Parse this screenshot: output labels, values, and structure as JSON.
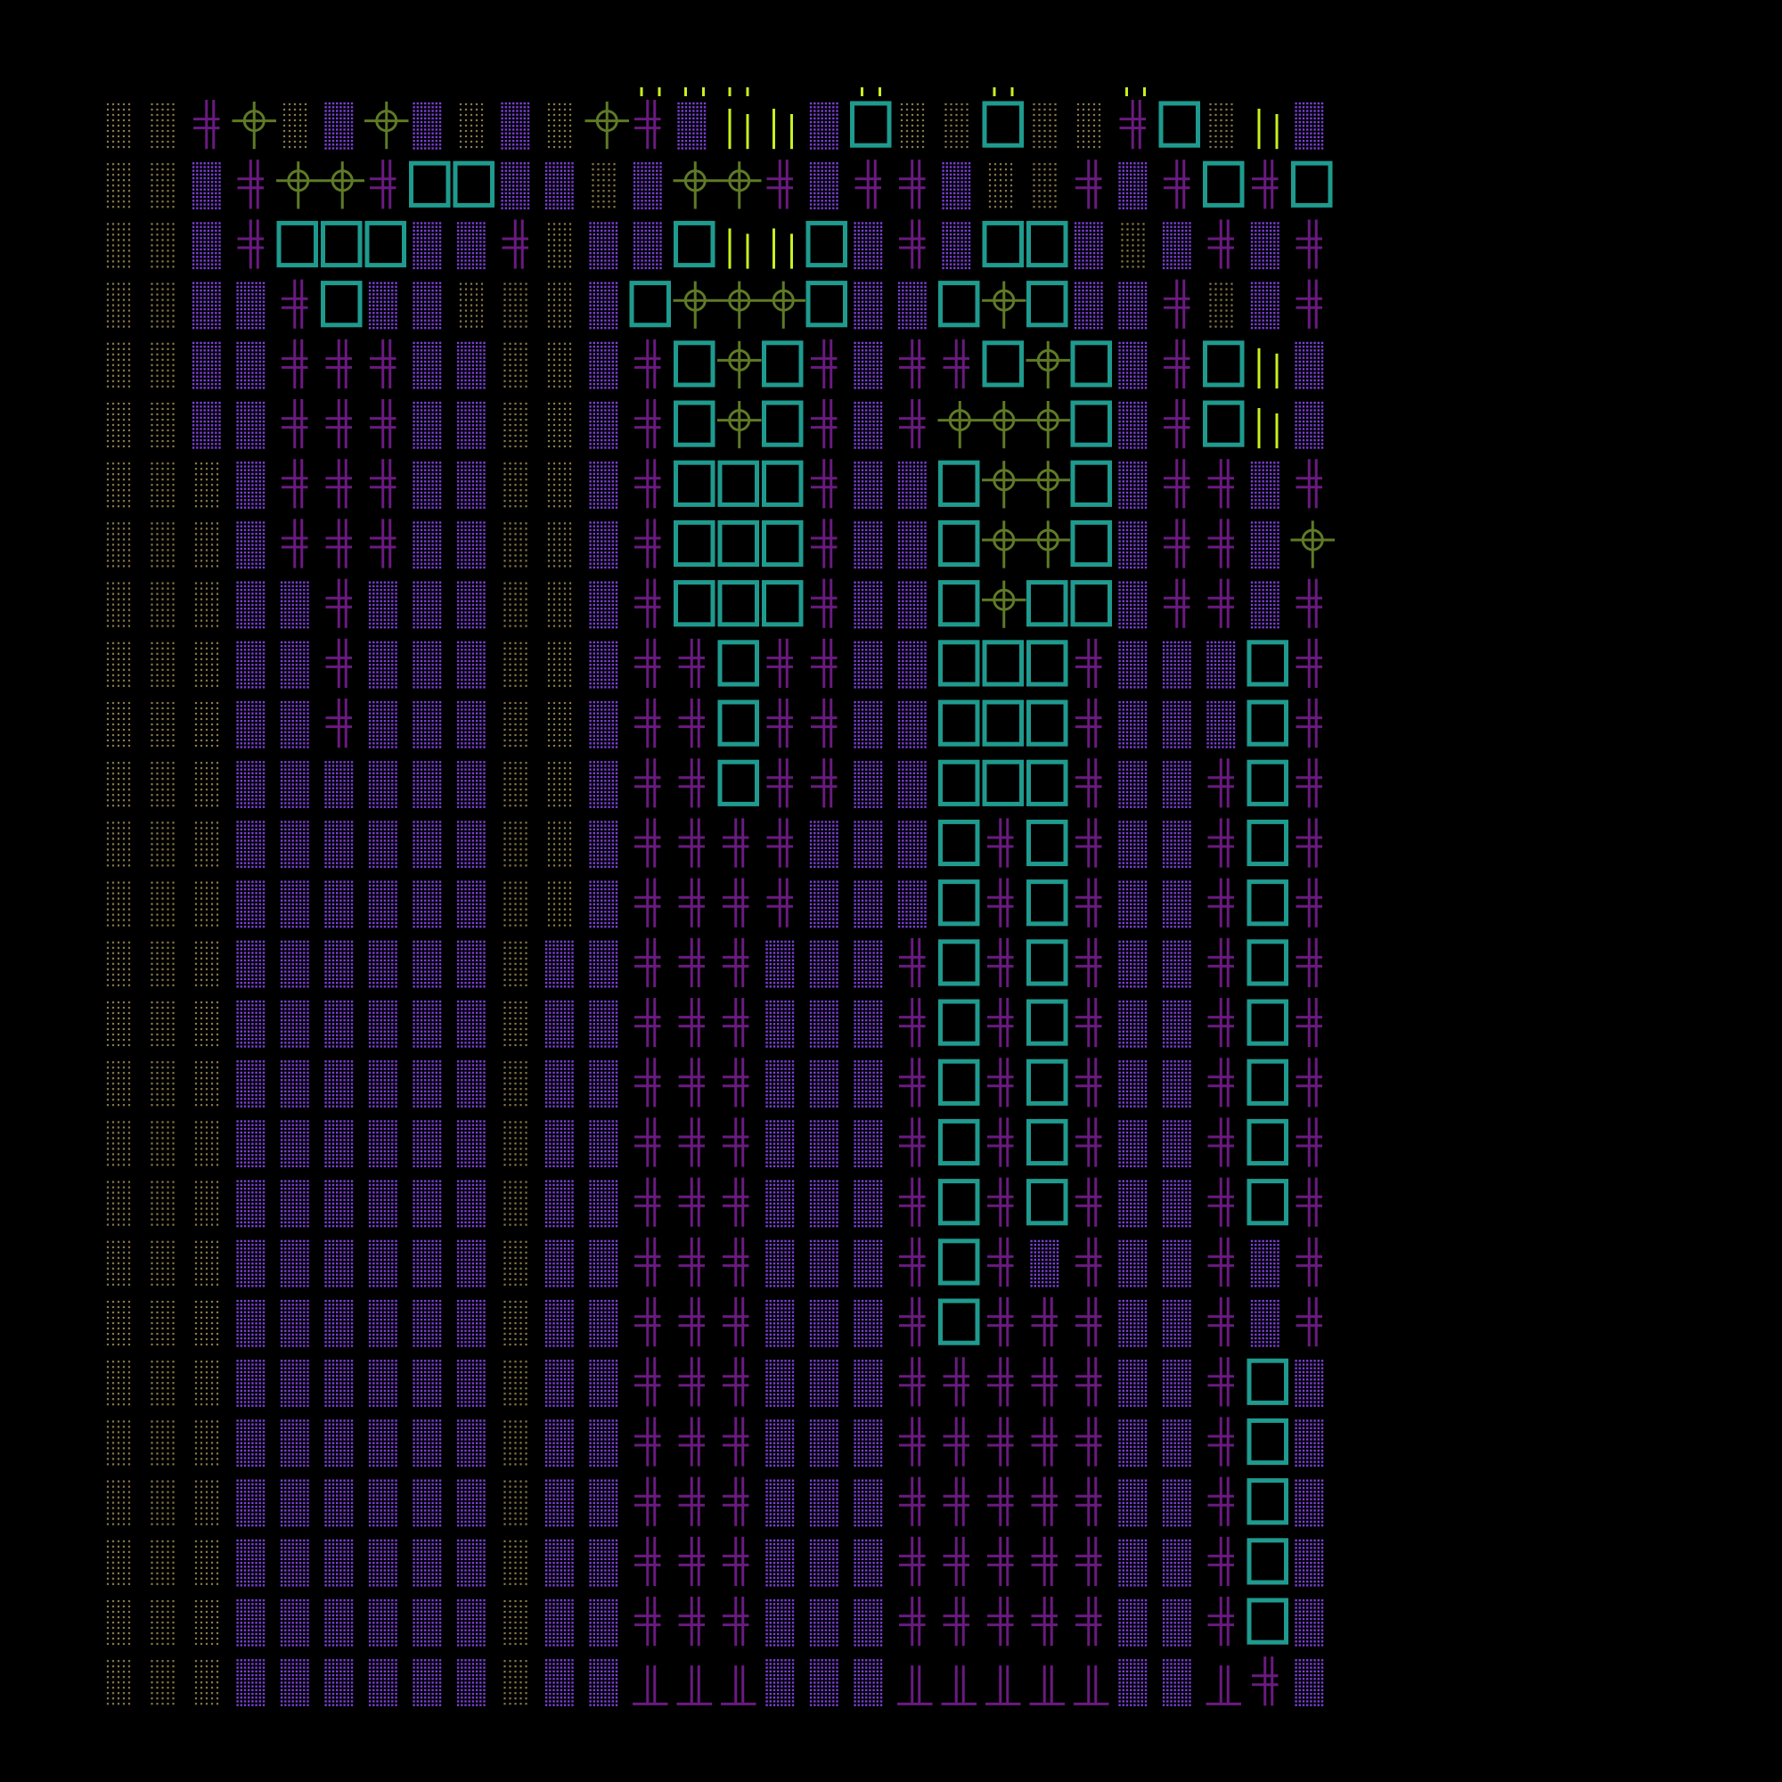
{
  "game": {
    "view": "tile-map",
    "grid": {
      "cols": 28,
      "rows": 27
    },
    "background_color": "#000000"
  },
  "legend": {
    "0": {
      "name": "dirt-floor",
      "color": "#8a7a46",
      "glyph": "dots-sparse"
    },
    "1": {
      "name": "stone-floor",
      "color": "#7a40d8",
      "glyph": "dots-dense"
    },
    "2": {
      "name": "wall-cross",
      "color": "#6a1a80",
      "glyph": "double-cross"
    },
    "3": {
      "name": "plant-cross",
      "color": "#5f7a26",
      "glyph": "circle-cross"
    },
    "4": {
      "name": "grass",
      "color": "#c8f020",
      "glyph": "vertical-strokes"
    },
    "5": {
      "name": "crate",
      "color": "#1f9a8e",
      "glyph": "square-box"
    },
    "6": {
      "name": "wall-end",
      "color": "#6a1a80",
      "glyph": "t-junction"
    },
    "7": {
      "name": "grass-tip",
      "color": "#c8f020",
      "glyph": "short-strokes"
    },
    "8": {
      "name": "crate-half",
      "color": "#1f9a8e",
      "glyph": "open-box"
    },
    "9": {
      "name": "empty",
      "color": "#000000",
      "glyph": "none"
    }
  },
  "map": [
    "0023013101032144150050025041",
    "0012332551101332122100212525",
    "0012555112011544512155101212",
    "0011251100015333511535112012",
    "0011222110012535212253512541",
    "0011222110012535212333512541",
    "0001222110012555211533512212",
    "0001222110012555211533512213",
    "0001121110012555211535512212",
    "0001121110012252211555211152",
    "0001121110012252211555211152",
    "0001111110012252211555211252",
    "0001111110012222111525211252",
    "0001111110012222111525211252",
    "0001111110112221112525211252",
    "0001111110112221112525211252",
    "0001111110112221112525211252",
    "0001111110112221112525211252",
    "0001111110112221112525211252",
    "0001111110112221112521211212",
    "0001111110112221112522211212",
    "0001111110112221112222211251",
    "0001111110112221112222211251",
    "0001111110112221112222211251",
    "0001111110112221112222211251",
    "0001111110112221112222211251",
    "0001111110116661116666611621"
  ],
  "overlays": {
    "grass_tips": [
      [
        0,
        12
      ],
      [
        0,
        13
      ],
      [
        0,
        14
      ],
      [
        0,
        17
      ],
      [
        0,
        20
      ],
      [
        0,
        23
      ]
    ]
  }
}
